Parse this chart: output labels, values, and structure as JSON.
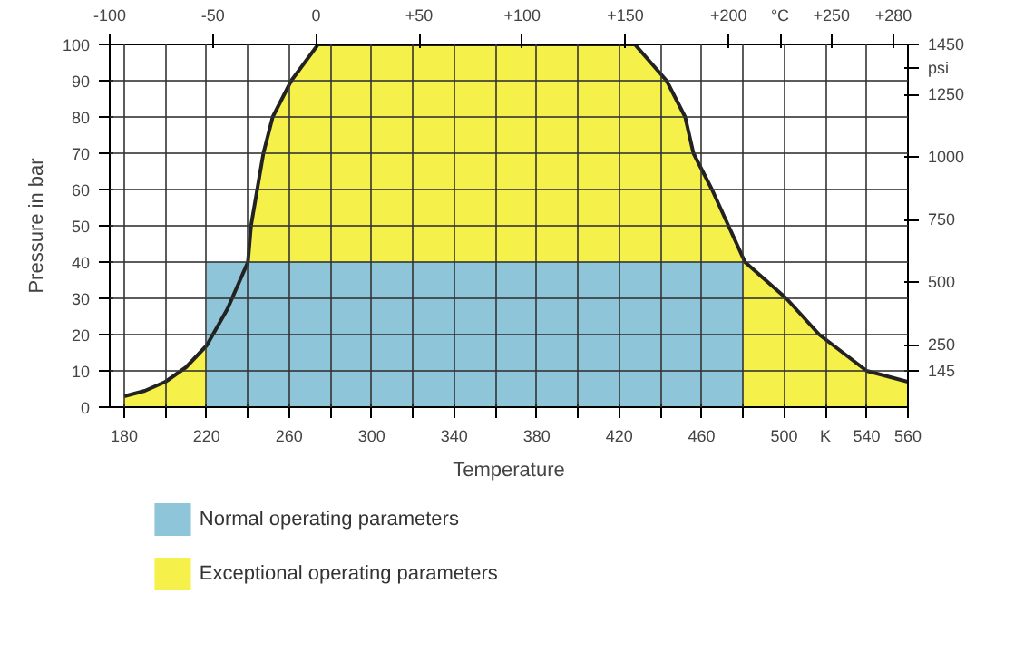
{
  "chart_data": {
    "type": "area",
    "xlabel": "Temperature",
    "ylabel": "Pressure in bar",
    "xlim": [
      173,
      560
    ],
    "ylim": [
      0,
      100
    ],
    "xticks": [
      180,
      {
        "value": 200,
        "label": null
      },
      220,
      {
        "value": 240,
        "label": null
      },
      260,
      {
        "value": 280,
        "label": null
      },
      300,
      {
        "value": 320,
        "label": null
      },
      340,
      {
        "value": 360,
        "label": null
      },
      380,
      {
        "value": 400,
        "label": null
      },
      420,
      {
        "value": 440,
        "label": null
      },
      460,
      {
        "value": 480,
        "label": null
      },
      500,
      {
        "value": 520,
        "label": "K"
      },
      540,
      560
    ],
    "yticks": [
      0,
      10,
      20,
      30,
      40,
      50,
      60,
      70,
      80,
      90,
      100
    ],
    "x2lim": [
      -100,
      287
    ],
    "x2ticks": [
      -100,
      -50,
      0,
      {
        "value": 50,
        "label": "+50"
      },
      {
        "value": 100,
        "label": "+100"
      },
      {
        "value": 150,
        "label": "+150"
      },
      {
        "value": 200,
        "label": "+200"
      },
      {
        "value": 225,
        "label": "°C"
      },
      {
        "value": 250,
        "label": "+250"
      },
      {
        "value": 280,
        "label": "+280"
      }
    ],
    "y2lim": [
      0,
      1450
    ],
    "y2ticks": [
      145,
      250,
      500,
      750,
      1000,
      1250,
      {
        "value": 1355,
        "label": "psi"
      },
      1450
    ],
    "grid": true,
    "legend": "bottom",
    "series": [
      {
        "name": "Normal operating parameters",
        "color": "#8ec5d8",
        "x": [
          220,
          480
        ],
        "values": [
          40,
          40
        ]
      },
      {
        "name": "Exceptional operating parameters",
        "color": "#f5f04a",
        "x": [
          180,
          190,
          200,
          210,
          220,
          230,
          240,
          241.5,
          247.5,
          252,
          261,
          274,
          427.6,
          443,
          452,
          456,
          465,
          473,
          481,
          501,
          517,
          540,
          560
        ],
        "values": [
          3,
          4.5,
          7,
          11,
          17,
          27,
          40,
          50,
          70,
          80,
          90,
          100,
          100,
          90,
          80,
          70,
          60,
          50,
          40,
          30,
          20,
          10,
          7
        ]
      }
    ]
  }
}
